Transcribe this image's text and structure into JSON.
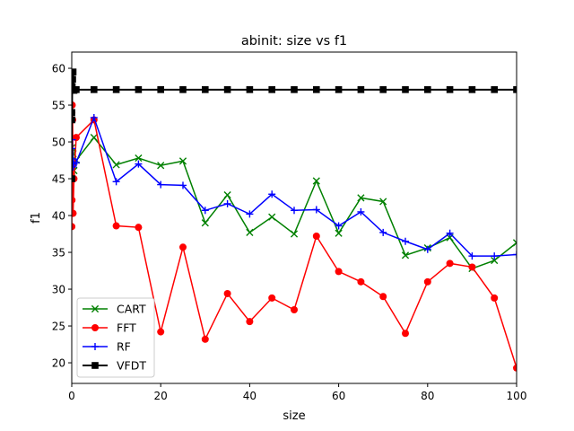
{
  "chart_data": {
    "type": "line",
    "title": "abinit: size vs f1",
    "xlabel": "size",
    "ylabel": "f1",
    "xlim": [
      0,
      100
    ],
    "ylim": [
      17.2,
      62.2
    ],
    "xticks": [
      0,
      20,
      40,
      60,
      80,
      100
    ],
    "yticks": [
      20,
      25,
      30,
      35,
      40,
      45,
      50,
      55,
      60
    ],
    "grid": false,
    "legend_position": "lower-left",
    "series": [
      {
        "name": "CART",
        "color": "#008000",
        "marker": "x",
        "x": [
          0.01,
          0.02,
          0.05,
          0.1,
          0.2,
          0.3,
          0.5,
          1,
          5,
          10,
          15,
          20,
          25,
          30,
          35,
          40,
          45,
          50,
          55,
          60,
          65,
          70,
          75,
          80,
          85,
          90,
          95,
          100
        ],
        "y": [
          46.0,
          49.2,
          47.4,
          48.6,
          47.5,
          48.4,
          46.1,
          47.5,
          50.6,
          46.9,
          47.8,
          46.8,
          47.4,
          39.0,
          42.8,
          37.7,
          39.8,
          37.5,
          44.7,
          37.6,
          42.4,
          41.9,
          34.6,
          35.6,
          37.0,
          32.8,
          33.9,
          36.3
        ]
      },
      {
        "name": "FFT",
        "color": "#ff0000",
        "marker": "circle",
        "x": [
          0.01,
          0.02,
          0.05,
          0.1,
          0.2,
          0.3,
          0.5,
          1,
          5,
          10,
          15,
          20,
          25,
          30,
          35,
          40,
          45,
          50,
          55,
          60,
          65,
          70,
          75,
          80,
          85,
          90,
          95,
          100
        ],
        "y": [
          38.5,
          54.0,
          42.1,
          55.0,
          53.0,
          40.3,
          45.0,
          50.6,
          53.0,
          38.6,
          38.4,
          24.2,
          35.7,
          23.2,
          29.4,
          25.6,
          28.8,
          27.2,
          37.2,
          32.4,
          31.0,
          29.0,
          24.0,
          31.0,
          33.5,
          33.0,
          28.8,
          19.3
        ]
      },
      {
        "name": "RF",
        "color": "#0000ff",
        "marker": "plus",
        "x": [
          0.01,
          0.02,
          0.05,
          0.1,
          0.2,
          0.3,
          0.5,
          1,
          5,
          10,
          15,
          20,
          25,
          30,
          35,
          40,
          45,
          50,
          55,
          60,
          65,
          70,
          75,
          80,
          85,
          90,
          95,
          100
        ],
        "y": [
          45.2,
          52.8,
          49.1,
          50.3,
          47.7,
          46.6,
          47.0,
          47.2,
          53.3,
          44.6,
          47.0,
          44.2,
          44.1,
          40.7,
          41.6,
          40.2,
          42.9,
          40.7,
          40.8,
          38.6,
          40.5,
          37.7,
          36.5,
          35.4,
          37.6,
          34.5,
          34.5,
          34.7
        ]
      },
      {
        "name": "VFDT",
        "color": "#000000",
        "marker": "square",
        "x": [
          0.01,
          0.02,
          0.05,
          0.1,
          0.2,
          0.3,
          0.5,
          1,
          5,
          10,
          15,
          20,
          25,
          30,
          35,
          40,
          45,
          50,
          55,
          60,
          65,
          70,
          75,
          80,
          85,
          90,
          95,
          100
        ],
        "y": [
          45.0,
          54.0,
          53.0,
          57.5,
          58.5,
          59.5,
          57.0,
          57.1,
          57.1,
          57.1,
          57.1,
          57.1,
          57.1,
          57.1,
          57.1,
          57.1,
          57.1,
          57.1,
          57.1,
          57.1,
          57.1,
          57.1,
          57.1,
          57.1,
          57.1,
          57.1,
          57.1,
          57.1
        ]
      }
    ]
  }
}
